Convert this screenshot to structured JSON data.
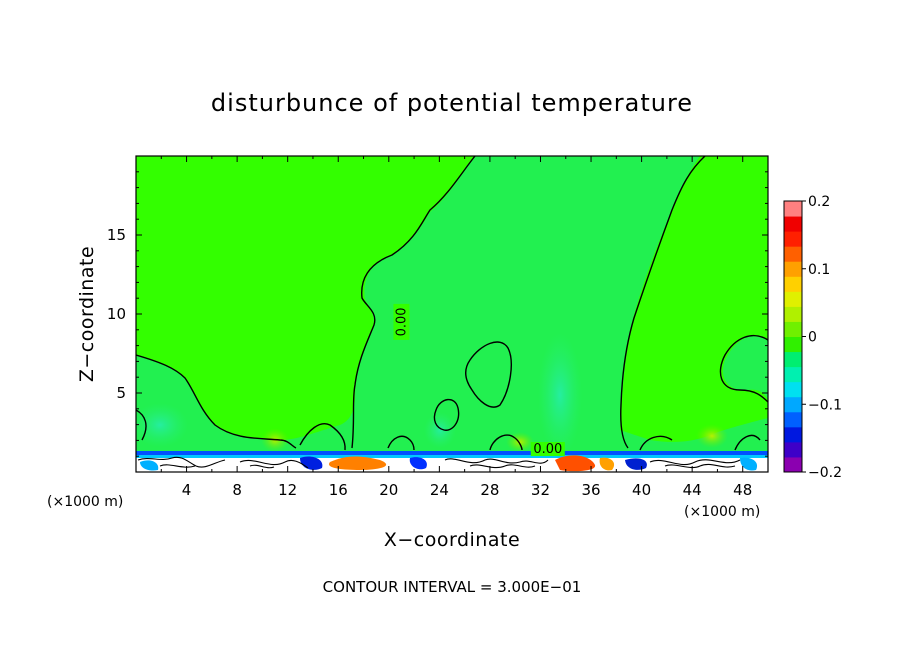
{
  "chart_data": {
    "type": "heatmap",
    "title": "disturbunce of potential temperature",
    "xlabel": "X−coordinate",
    "ylabel": "Z−coordinate",
    "x_unit": "(×1000 m)",
    "xlim": [
      0,
      50
    ],
    "ylim": [
      0,
      20
    ],
    "x_ticks": [
      4,
      8,
      12,
      16,
      20,
      24,
      28,
      32,
      36,
      40,
      44,
      48
    ],
    "x_tick_labels": [
      "4",
      "8",
      "12",
      "16",
      "20",
      "24",
      "28",
      "32",
      "36",
      "40",
      "44",
      "48"
    ],
    "y_ticks": [
      5,
      10,
      15
    ],
    "y_tick_labels": [
      "5",
      "10",
      "15"
    ],
    "contour_labels": [
      {
        "text": "0.00",
        "x": 21,
        "y": 9.5,
        "rotated": true
      },
      {
        "text": "0.00",
        "x": 32.5,
        "y": 1.2,
        "rotated": false
      }
    ],
    "colorbar": {
      "min": -0.2,
      "max": 0.2,
      "labels": [
        "0.2",
        "0.1",
        "0",
        "−0.1",
        "−0.2"
      ],
      "label_values": [
        0.2,
        0.1,
        0,
        -0.1,
        -0.2
      ],
      "colors": [
        "#8b00b0",
        "#3e00c8",
        "#0018e0",
        "#0060ff",
        "#00a8ff",
        "#00e0f0",
        "#00f0b0",
        "#00ee70",
        "#30f000",
        "#70f000",
        "#b0f000",
        "#e0f000",
        "#ffd000",
        "#ffa000",
        "#ff6000",
        "#ff2000",
        "#f00000",
        "#ff8080"
      ]
    },
    "footer": "CONTOUR INTERVAL = 3.000E−01",
    "colors": {
      "background_field": "#33ff00",
      "mid_field": "#22ee55",
      "weak_negative": "#33ee99",
      "contour_line": "#000000"
    }
  }
}
